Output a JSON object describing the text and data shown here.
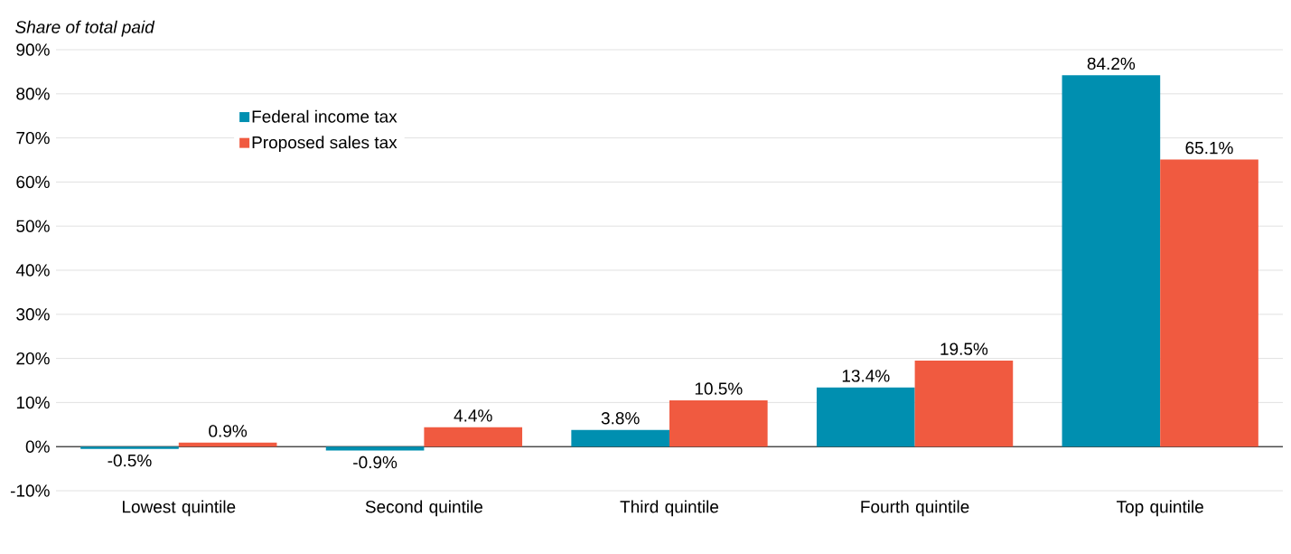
{
  "chart_data": {
    "type": "bar",
    "ylabel": "Share of total paid",
    "categories": [
      "Lowest quintile",
      "Second quintile",
      "Third quintile",
      "Fourth quintile",
      "Top quintile"
    ],
    "series": [
      {
        "name": "Federal income tax",
        "color": "#008fb0",
        "values": [
          -0.5,
          -0.9,
          3.8,
          13.4,
          84.2
        ],
        "value_labels": [
          "-0.5%",
          "-0.9%",
          "3.8%",
          "13.4%",
          "84.2%"
        ]
      },
      {
        "name": "Proposed sales tax",
        "color": "#f05a40",
        "values": [
          0.9,
          4.4,
          10.5,
          19.5,
          65.1
        ],
        "value_labels": [
          "0.9%",
          "4.4%",
          "10.5%",
          "19.5%",
          "65.1%"
        ]
      }
    ],
    "ylim": [
      -10,
      90
    ],
    "yticks": [
      {
        "value": -10,
        "label": "-10%"
      },
      {
        "value": 0,
        "label": "0%"
      },
      {
        "value": 10,
        "label": "10%"
      },
      {
        "value": 20,
        "label": "20%"
      },
      {
        "value": 30,
        "label": "30%"
      },
      {
        "value": 40,
        "label": "40%"
      },
      {
        "value": 50,
        "label": "50%"
      },
      {
        "value": 60,
        "label": "60%"
      },
      {
        "value": 70,
        "label": "70%"
      },
      {
        "value": 80,
        "label": "80%"
      },
      {
        "value": 90,
        "label": "90%"
      }
    ],
    "grid": "y",
    "legend": "top left"
  }
}
